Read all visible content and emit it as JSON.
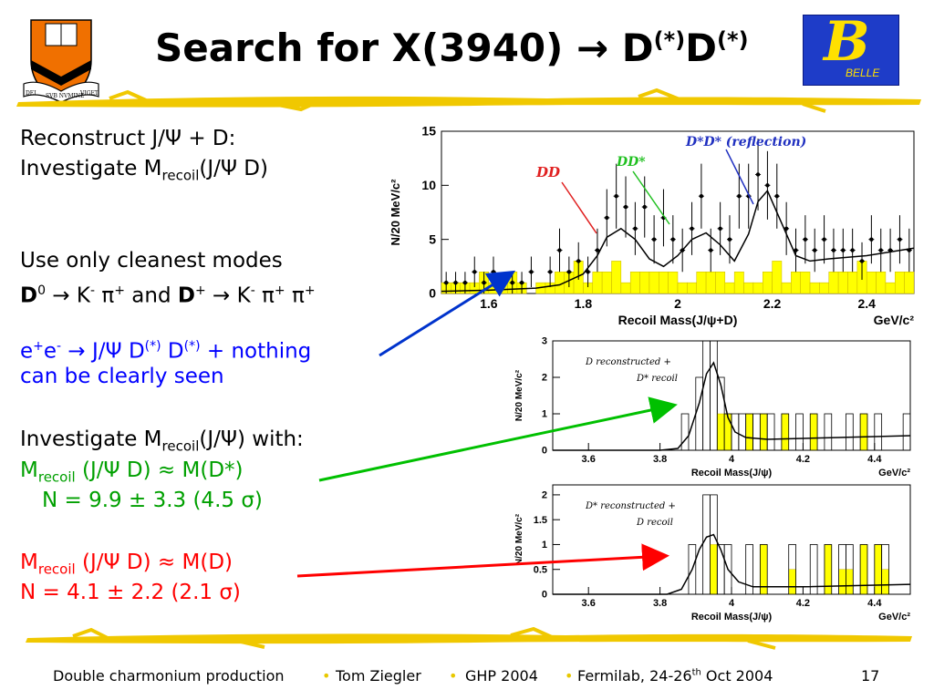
{
  "slide": {
    "title_main": "Search for X(3940) ",
    "title_arrow": "→",
    "title_d1": " D",
    "title_sup1": "(*)",
    "title_d2": "D",
    "title_sup2": "(*)",
    "logo_left_text": [
      "DEI",
      "SVB NVMINE",
      "VIGET"
    ],
    "logo_right_text": "BELLE",
    "logo_right_letter": "B"
  },
  "body": {
    "l1a": "Reconstruct J/Ψ + D:",
    "l2a": "Investigate M",
    "l2sub": "recoil",
    "l2b": "(J/Ψ D)",
    "l3": "Use only cleanest modes",
    "l4a": "D",
    "l4b": "0",
    "l4c": " → K",
    "l4d": "-",
    "l4e": "  π",
    "l4f": "+",
    "l4g": " and ",
    "l4h": "D",
    "l4i": "+",
    "l4j": " → K",
    "l4k": "-",
    "l4l": "  π",
    "l4m": "+",
    "l4n": "  π",
    "l4o": "+",
    "l5a": "e",
    "l5b": "+",
    "l5c": "e",
    "l5d": "-",
    "l5e": " → J/Ψ D",
    "l5f": "(*)",
    "l5g": " D",
    "l5h": "(*)",
    "l5i": " + nothing",
    "l6": "can be clearly seen",
    "l7a": "Investigate M",
    "l7sub": "recoil",
    "l7b": "(J/Ψ) with:",
    "l8a": "M",
    "l8sub": "recoil",
    "l8b": " (J/Ψ D) ≈ M(D*)",
    "l9": "N = 9.9 ± 3.3 (4.5 σ)",
    "l10a": "M",
    "l10sub": "recoil",
    "l10b": " (J/Ψ D) ≈ M(D)",
    "l11": "N = 4.1 ± 2.2 (2.1 σ)"
  },
  "footer": {
    "f1": "Double charmonium production",
    "f2": "Tom Ziegler",
    "f3": "GHP 2004",
    "f4a": "Fermilab, 24-26",
    "f4b": "th",
    "f4c": " Oct 2004",
    "page": "17",
    "bullet": "•"
  },
  "colors": {
    "blue": "#0000ff",
    "green": "#00c000",
    "red": "#ff0000",
    "highlight": "#ffff00",
    "brush": "#f0c800",
    "belle_bg": "#1e3cc8"
  },
  "chart_data": [
    {
      "type": "bar",
      "xlabel": "Recoil Mass(J/ψ+D)",
      "xunit": "GeV/c²",
      "ylabel": "N/20 MeV/c²",
      "xlim": [
        1.5,
        2.5
      ],
      "ylim": [
        0,
        15
      ],
      "xticks": [
        "1.6",
        "1.8",
        "2",
        "2.2",
        "2.4"
      ],
      "yticks": [
        "0",
        "5",
        "10",
        "15"
      ],
      "annotations": [
        "DD",
        "DD*",
        "D*D* (reflection)"
      ],
      "bin_width": 0.02,
      "hist_start": 1.5,
      "hist_values": [
        1,
        1,
        1,
        1,
        2,
        1,
        1,
        2,
        1,
        0,
        1,
        1,
        2,
        2,
        3,
        1,
        2,
        2,
        3,
        1,
        2,
        2,
        2,
        2,
        2,
        1,
        1,
        2,
        2,
        2,
        1,
        2,
        1,
        1,
        2,
        3,
        1,
        2,
        2,
        1,
        1,
        2,
        2,
        2,
        3,
        2,
        2,
        1,
        2,
        2
      ],
      "points_x": [
        1.51,
        1.53,
        1.55,
        1.57,
        1.59,
        1.61,
        1.65,
        1.67,
        1.69,
        1.73,
        1.75,
        1.77,
        1.79,
        1.81,
        1.83,
        1.85,
        1.87,
        1.89,
        1.91,
        1.93,
        1.95,
        1.97,
        1.99,
        2.01,
        2.03,
        2.05,
        2.07,
        2.09,
        2.11,
        2.13,
        2.15,
        2.17,
        2.19,
        2.21,
        2.23,
        2.25,
        2.27,
        2.29,
        2.31,
        2.33,
        2.35,
        2.37,
        2.39,
        2.41,
        2.43,
        2.45,
        2.47,
        2.49
      ],
      "points_y": [
        1,
        1,
        1,
        2,
        1,
        2,
        1,
        1,
        2,
        2,
        4,
        2,
        3,
        2,
        4,
        7,
        9,
        8,
        6,
        8,
        5,
        7,
        5,
        4,
        6,
        9,
        4,
        6,
        5,
        9,
        9,
        11,
        10,
        9,
        6,
        4,
        5,
        4,
        5,
        4,
        4,
        4,
        3,
        5,
        4,
        4,
        5,
        4
      ],
      "fit_x": [
        1.5,
        1.6,
        1.7,
        1.75,
        1.8,
        1.83,
        1.85,
        1.88,
        1.91,
        1.94,
        1.97,
        2.0,
        2.03,
        2.06,
        2.09,
        2.12,
        2.15,
        2.17,
        2.19,
        2.22,
        2.25,
        2.28,
        2.32,
        2.4,
        2.5
      ],
      "fit_y": [
        0.2,
        0.3,
        0.5,
        0.8,
        1.8,
        3.5,
        5.2,
        6.0,
        5.0,
        3.2,
        2.5,
        3.5,
        5.0,
        5.6,
        4.5,
        3.0,
        5.5,
        8.5,
        9.5,
        6.5,
        3.5,
        3.0,
        3.2,
        3.5,
        4.2
      ]
    },
    {
      "type": "bar",
      "title": "D reconstructed + D* recoil",
      "xlabel": "Recoil Mass(J/ψ)",
      "xunit": "GeV/c²",
      "ylabel": "N/20 MeV/c²",
      "xlim": [
        3.5,
        4.5
      ],
      "ylim": [
        0,
        3
      ],
      "xticks": [
        "3.6",
        "3.8",
        "4",
        "4.2",
        "4.4"
      ],
      "yticks": [
        "0",
        "1",
        "2",
        "3"
      ],
      "bin_width": 0.02,
      "bin_starts": [
        3.86,
        3.9,
        3.92,
        3.94,
        3.96,
        3.98,
        4.0,
        4.02,
        4.04,
        4.06,
        4.08,
        4.1,
        4.14,
        4.18,
        4.22,
        4.26,
        4.32,
        4.36,
        4.4,
        4.48
      ],
      "open_values": [
        1,
        2,
        3,
        3,
        2,
        1,
        1,
        1,
        1,
        1,
        1,
        1,
        1,
        1,
        1,
        1,
        1,
        1,
        1,
        1
      ],
      "filled_values": [
        0,
        0,
        0,
        0,
        1,
        1,
        0,
        0,
        1,
        0,
        1,
        0,
        1,
        0,
        1,
        0,
        0,
        1,
        0,
        0
      ],
      "fit_x": [
        3.5,
        3.8,
        3.85,
        3.88,
        3.91,
        3.93,
        3.95,
        3.97,
        3.99,
        4.01,
        4.04,
        4.1,
        4.3,
        4.5
      ],
      "fit_y": [
        0,
        0,
        0.05,
        0.4,
        1.3,
        2.1,
        2.4,
        1.8,
        0.9,
        0.5,
        0.35,
        0.3,
        0.35,
        0.4
      ]
    },
    {
      "type": "bar",
      "title": "D* reconstructed + D recoil",
      "xlabel": "Recoil Mass(J/ψ)",
      "xunit": "GeV/c²",
      "ylabel": "N/20 MeV/c²",
      "xlim": [
        3.5,
        4.5
      ],
      "ylim": [
        0,
        2.2
      ],
      "xticks": [
        "3.6",
        "3.8",
        "4",
        "4.2",
        "4.4"
      ],
      "yticks": [
        "0",
        "0.5",
        "1",
        "1.5",
        "2"
      ],
      "bin_width": 0.02,
      "bin_starts": [
        3.88,
        3.92,
        3.94,
        3.96,
        3.98,
        4.04,
        4.08,
        4.16,
        4.22,
        4.26,
        4.3,
        4.32,
        4.36,
        4.4,
        4.42
      ],
      "open_values": [
        1,
        2,
        2,
        1,
        1,
        1,
        1,
        1,
        1,
        1,
        1,
        1,
        1,
        1,
        1
      ],
      "filled_values": [
        0,
        0,
        1,
        0,
        0,
        0,
        1,
        0.5,
        0,
        1,
        0.5,
        0.5,
        1,
        1,
        0.5
      ],
      "fit_x": [
        3.5,
        3.82,
        3.86,
        3.89,
        3.91,
        3.93,
        3.95,
        3.97,
        3.99,
        4.02,
        4.06,
        4.2,
        4.5
      ],
      "fit_y": [
        0,
        0,
        0.1,
        0.5,
        0.9,
        1.15,
        1.2,
        0.9,
        0.5,
        0.25,
        0.15,
        0.15,
        0.2
      ]
    }
  ]
}
